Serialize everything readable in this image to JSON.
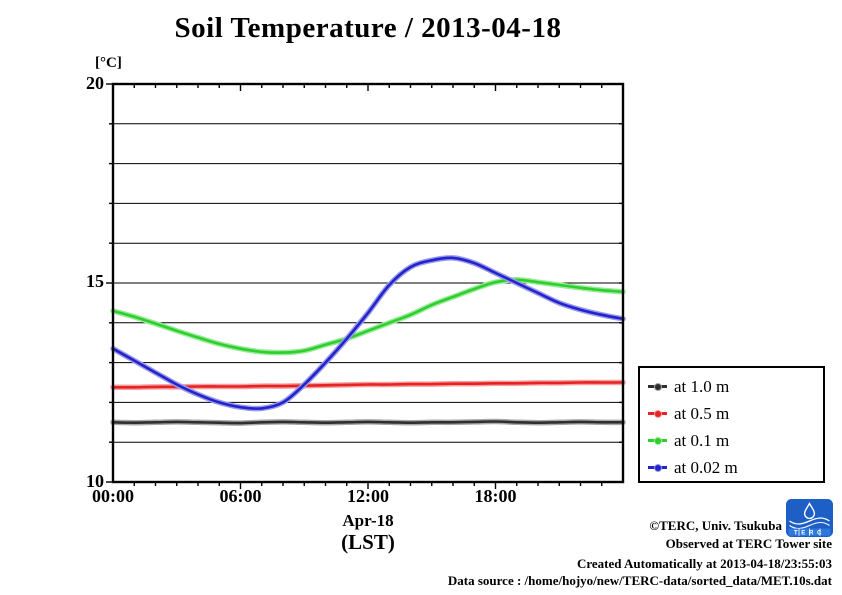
{
  "title": "Soil Temperature / 2013-04-18",
  "y_axis": {
    "unit_label": "[°C]",
    "tick_labels": [
      "20",
      "15",
      "10"
    ]
  },
  "x_axis": {
    "tick_labels": [
      "00:00",
      "06:00",
      "12:00",
      "18:00"
    ],
    "date_label": "Apr-18",
    "timezone_label": "(LST)"
  },
  "legend": {
    "items": [
      {
        "label": "at 1.0 m",
        "color": "#2f2f2f",
        "halo": "#a8a8a8"
      },
      {
        "label": "at 0.5 m",
        "color": "#e62222",
        "halo": "#f4a0a0"
      },
      {
        "label": "at 0.1 m",
        "color": "#2dcf2d",
        "halo": "#9bea9b"
      },
      {
        "label": "at 0.02 m",
        "color": "#2323cd",
        "halo": "#9a9ae9"
      }
    ]
  },
  "footer": {
    "line1": "©TERC, Univ. Tsukuba",
    "line2": "Observed at TERC Tower site",
    "line3": "Created Automatically at 2013-04-18/23:55:03",
    "line4": "Data source : /home/hojyo/new/TERC-data/sorted_data/MET.10s.dat",
    "logo_text": "TERC"
  },
  "chart_data": {
    "type": "line",
    "title": "Soil Temperature / 2013-04-18",
    "xlabel": "Apr-18 (LST)",
    "ylabel": "[°C]",
    "x_unit": "hour of day",
    "xlim": [
      0,
      24
    ],
    "ylim": [
      10,
      20
    ],
    "grid": "horizontal lines every 1 °C",
    "x_major_ticks_hours": [
      0,
      6,
      12,
      18
    ],
    "x_minor_tick_every_hours": 1,
    "y_labeled_ticks": [
      10,
      15,
      20
    ],
    "legend_position": "outside right-bottom",
    "x_hours": [
      0,
      1,
      2,
      3,
      4,
      5,
      6,
      7,
      8,
      9,
      10,
      11,
      12,
      13,
      14,
      15,
      16,
      17,
      18,
      19,
      20,
      21,
      22,
      23,
      24
    ],
    "series": [
      {
        "name": "at 1.0 m",
        "depth_m": 1.0,
        "color": "#2f2f2f",
        "halo": "#a8a8a8",
        "values": [
          11.5,
          11.49,
          11.5,
          11.51,
          11.5,
          11.49,
          11.48,
          11.5,
          11.51,
          11.5,
          11.49,
          11.5,
          11.51,
          11.5,
          11.49,
          11.5,
          11.5,
          11.51,
          11.52,
          11.5,
          11.49,
          11.5,
          11.51,
          11.5,
          11.5
        ]
      },
      {
        "name": "at 0.5 m",
        "depth_m": 0.5,
        "color": "#e62222",
        "halo": "#f4a0a0",
        "values": [
          12.38,
          12.38,
          12.39,
          12.39,
          12.4,
          12.4,
          12.4,
          12.41,
          12.41,
          12.42,
          12.43,
          12.44,
          12.45,
          12.45,
          12.46,
          12.46,
          12.47,
          12.47,
          12.48,
          12.48,
          12.49,
          12.49,
          12.5,
          12.5,
          12.5
        ]
      },
      {
        "name": "at 0.1 m",
        "depth_m": 0.1,
        "color": "#2dcf2d",
        "halo": "#9bea9b",
        "values": [
          14.3,
          14.15,
          13.98,
          13.8,
          13.63,
          13.47,
          13.35,
          13.27,
          13.25,
          13.3,
          13.45,
          13.6,
          13.8,
          14.0,
          14.2,
          14.45,
          14.65,
          14.85,
          15.02,
          15.08,
          15.02,
          14.95,
          14.88,
          14.82,
          14.78
        ]
      },
      {
        "name": "at 0.02 m",
        "depth_m": 0.02,
        "color": "#2323cd",
        "halo": "#9a9ae9",
        "values": [
          13.35,
          13.05,
          12.75,
          12.45,
          12.2,
          12.0,
          11.88,
          11.85,
          12.0,
          12.45,
          13.0,
          13.6,
          14.25,
          14.95,
          15.4,
          15.57,
          15.63,
          15.5,
          15.25,
          15.0,
          14.75,
          14.5,
          14.33,
          14.2,
          14.1
        ]
      }
    ]
  }
}
